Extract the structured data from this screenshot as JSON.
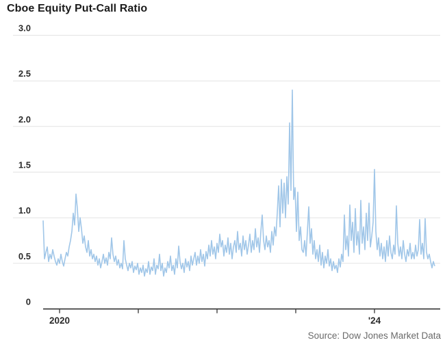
{
  "header": {
    "title": "Cboe Equity Put-Call Ratio"
  },
  "footer": {
    "source": "Source: Dow Jones Market Data"
  },
  "chart_data": {
    "type": "line",
    "title": "Cboe Equity Put-Call Ratio",
    "source": "Source: Dow Jones Market Data",
    "xlabel": "",
    "ylabel": "",
    "ylim": [
      0,
      3.0
    ],
    "grid": "horizontal",
    "legend": "none",
    "line_color": "#a0c6e8",
    "axis_color": "#222222",
    "grid_color": "#e3e3e3",
    "label_color": "#2b2b2b",
    "y_ticks": [
      {
        "v": 3.0,
        "label": "3.0"
      },
      {
        "v": 2.5,
        "label": "2.5"
      },
      {
        "v": 2.0,
        "label": "2.0"
      },
      {
        "v": 1.5,
        "label": "1.5"
      },
      {
        "v": 1.0,
        "label": "1.0"
      },
      {
        "v": 0.5,
        "label": "0.5"
      },
      {
        "v": 0.0,
        "label": "0"
      }
    ],
    "x_ticks": [
      {
        "year": 2020,
        "label": "2020"
      },
      {
        "year": 2021,
        "label": ""
      },
      {
        "year": 2022,
        "label": ""
      },
      {
        "year": 2023,
        "label": ""
      },
      {
        "year": 2024,
        "label": "'24"
      }
    ],
    "x_range_years": [
      2019.79,
      2024.77
    ],
    "series_name": "Cboe equity put-call ratio (daily)",
    "notable_points": [
      {
        "year_approx": "2019-10",
        "value": 0.97
      },
      {
        "year_approx": "2020-03",
        "value": 1.26
      },
      {
        "year_approx": "2021-mid",
        "value": 0.36
      },
      {
        "year_approx": "2022-12",
        "value": 2.4
      },
      {
        "year_approx": "2023-02",
        "value": 1.12
      },
      {
        "year_approx": "2024-01",
        "value": 1.53
      },
      {
        "year_approx": "2024-04",
        "value": 1.13
      },
      {
        "year_approx": "2024-08",
        "value": 0.99
      }
    ],
    "values": [
      0.97,
      0.55,
      0.62,
      0.68,
      0.52,
      0.6,
      0.55,
      0.65,
      0.58,
      0.52,
      0.48,
      0.55,
      0.5,
      0.6,
      0.52,
      0.47,
      0.55,
      0.62,
      0.58,
      0.68,
      0.75,
      0.85,
      1.05,
      0.92,
      1.26,
      1.1,
      0.85,
      1.0,
      0.88,
      0.72,
      0.8,
      0.68,
      0.62,
      0.75,
      0.58,
      0.65,
      0.55,
      0.6,
      0.52,
      0.58,
      0.48,
      0.55,
      0.45,
      0.52,
      0.6,
      0.5,
      0.56,
      0.48,
      0.62,
      0.55,
      0.78,
      0.6,
      0.52,
      0.58,
      0.48,
      0.54,
      0.45,
      0.5,
      0.44,
      0.75,
      0.55,
      0.48,
      0.42,
      0.5,
      0.45,
      0.52,
      0.4,
      0.47,
      0.43,
      0.5,
      0.38,
      0.45,
      0.4,
      0.48,
      0.36,
      0.44,
      0.4,
      0.52,
      0.38,
      0.46,
      0.42,
      0.55,
      0.38,
      0.48,
      0.44,
      0.6,
      0.42,
      0.5,
      0.36,
      0.45,
      0.4,
      0.52,
      0.45,
      0.58,
      0.42,
      0.48,
      0.38,
      0.55,
      0.45,
      0.69,
      0.52,
      0.44,
      0.5,
      0.4,
      0.55,
      0.46,
      0.52,
      0.42,
      0.58,
      0.48,
      0.55,
      0.62,
      0.48,
      0.58,
      0.5,
      0.65,
      0.52,
      0.6,
      0.47,
      0.63,
      0.55,
      0.7,
      0.58,
      0.75,
      0.6,
      0.68,
      0.55,
      0.72,
      0.62,
      0.82,
      0.68,
      0.75,
      0.58,
      0.7,
      0.62,
      0.78,
      0.6,
      0.72,
      0.55,
      0.68,
      0.75,
      0.62,
      0.85,
      0.65,
      0.72,
      0.58,
      0.8,
      0.65,
      0.75,
      0.6,
      0.7,
      0.82,
      0.62,
      0.75,
      0.65,
      0.88,
      0.68,
      0.78,
      0.62,
      0.85,
      1.03,
      0.75,
      0.65,
      0.8,
      0.68,
      0.75,
      0.62,
      0.85,
      0.7,
      0.9,
      0.8,
      1.05,
      1.35,
      0.9,
      1.42,
      1.05,
      1.38,
      1.0,
      1.45,
      1.15,
      2.04,
      1.3,
      2.4,
      1.2,
      1.33,
      0.85,
      1.28,
      0.75,
      0.9,
      0.65,
      0.62,
      0.75,
      0.58,
      0.85,
      1.12,
      0.72,
      0.88,
      0.6,
      0.75,
      0.55,
      0.65,
      0.52,
      0.7,
      0.48,
      0.62,
      0.45,
      0.58,
      0.5,
      0.65,
      0.47,
      0.55,
      0.42,
      0.52,
      0.44,
      0.48,
      0.4,
      0.55,
      0.46,
      0.6,
      0.52,
      1.03,
      0.65,
      0.8,
      0.58,
      1.14,
      0.75,
      0.95,
      0.62,
      1.1,
      0.7,
      0.85,
      0.6,
      1.19,
      0.72,
      0.9,
      0.65,
      1.05,
      0.75,
      1.16,
      0.68,
      0.8,
      0.95,
      1.53,
      0.85,
      0.65,
      0.78,
      0.58,
      0.72,
      0.55,
      0.68,
      0.52,
      0.75,
      0.58,
      0.8,
      0.62,
      0.55,
      0.7,
      0.6,
      1.13,
      0.72,
      0.58,
      0.68,
      0.55,
      0.75,
      0.6,
      0.52,
      0.65,
      0.58,
      0.72,
      0.55,
      0.62,
      0.55,
      0.7,
      0.58,
      0.65,
      0.98,
      0.6,
      0.72,
      0.55,
      0.99,
      0.62,
      0.55,
      0.6,
      0.52,
      0.45,
      0.52,
      0.47
    ]
  }
}
